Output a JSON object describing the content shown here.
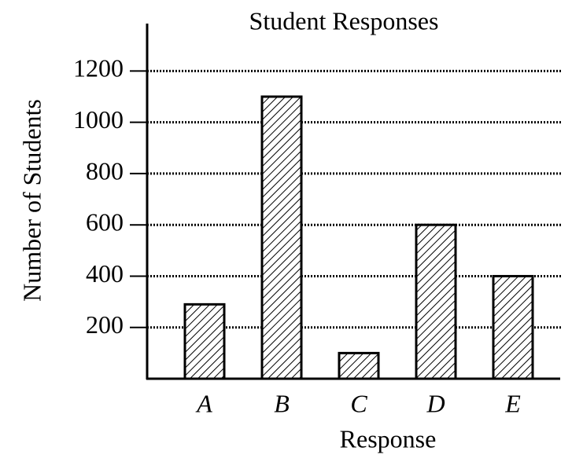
{
  "chart_data": {
    "type": "bar",
    "title": "Student Responses",
    "x_label": "Response",
    "y_label": "Number of Students",
    "categories": [
      "A",
      "B",
      "C",
      "D",
      "E"
    ],
    "values": [
      290,
      1100,
      100,
      600,
      400
    ],
    "color": "#000000",
    "ylim": [
      0,
      1385
    ],
    "yticks": [
      200,
      400,
      600,
      800,
      1000,
      1200
    ],
    "grid": true
  }
}
